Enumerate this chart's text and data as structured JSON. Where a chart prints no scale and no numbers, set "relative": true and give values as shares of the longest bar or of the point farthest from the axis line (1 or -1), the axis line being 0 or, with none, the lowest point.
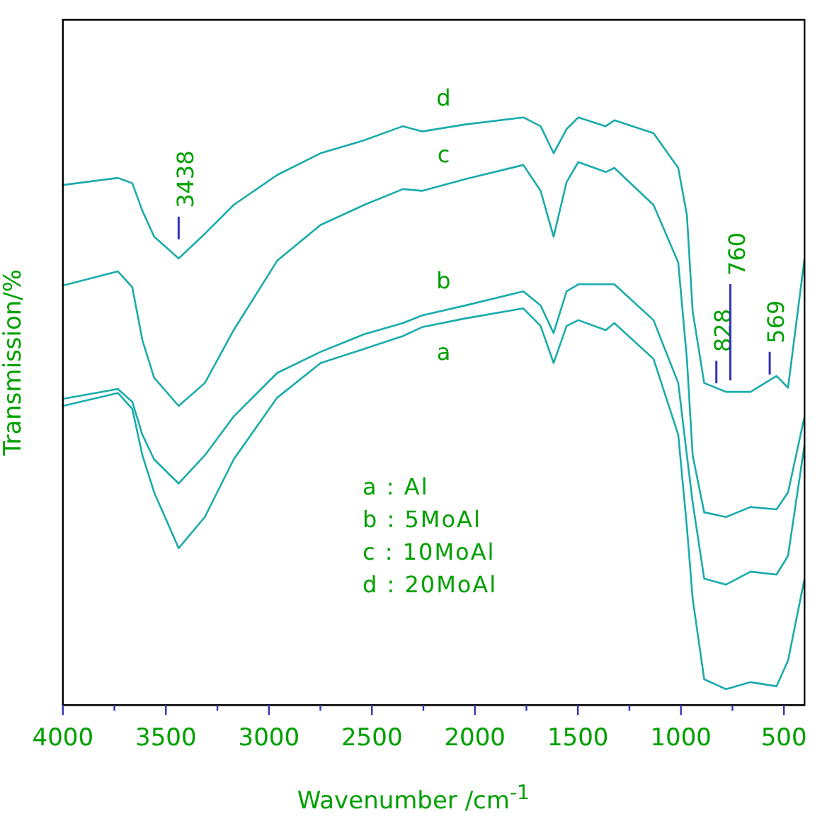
{
  "chart_data": {
    "type": "line",
    "xlabel": "Wavenumber /cm$^{-1}$",
    "ylabel": "Transmission/%",
    "relative": true,
    "grid": false,
    "legend": false,
    "marker": "none",
    "line_style": "solid",
    "xlim": [
      4000,
      400
    ],
    "xticks": [
      4000,
      {
        "value": 3750,
        "label": null
      },
      3500,
      {
        "value": 3250,
        "label": null
      },
      3000,
      {
        "value": 2750,
        "label": null
      },
      2500,
      {
        "value": 2250,
        "label": null
      },
      2000,
      {
        "value": 1750,
        "label": null
      },
      1500,
      {
        "value": 1250,
        "label": null
      },
      1000,
      {
        "value": 750,
        "label": null
      },
      500
    ],
    "x": [
      4000,
      3733,
      3663,
      3614,
      3557,
      3438,
      3311,
      3171,
      2960,
      2749,
      2538,
      2349,
      2257,
      2046,
      1765,
      1681,
      1618,
      1555,
      1498,
      1365,
      1323,
      1133,
      1013,
      971,
      943,
      887,
      781,
      662,
      536,
      480,
      400
    ],
    "series": [
      {
        "name": "a",
        "color": "#1aabab",
        "values": [
          0.509,
          0.531,
          0.504,
          0.425,
          0.362,
          0.267,
          0.32,
          0.418,
          0.523,
          0.582,
          0.606,
          0.628,
          0.643,
          0.658,
          0.675,
          0.645,
          0.582,
          0.645,
          0.655,
          0.638,
          0.65,
          0.589,
          0.46,
          0.303,
          0.181,
          0.044,
          0.027,
          0.039,
          0.032,
          0.076,
          0.215
        ]
      },
      {
        "name": "b",
        "color": "#1aabab",
        "values": [
          0.521,
          0.538,
          0.516,
          0.46,
          0.418,
          0.377,
          0.425,
          0.491,
          0.565,
          0.601,
          0.631,
          0.65,
          0.663,
          0.68,
          0.704,
          0.68,
          0.633,
          0.704,
          0.716,
          0.716,
          0.716,
          0.655,
          0.548,
          0.425,
          0.345,
          0.215,
          0.205,
          0.227,
          0.222,
          0.254,
          0.443
        ]
      },
      {
        "name": "c",
        "color": "#1aabab",
        "values": [
          0.714,
          0.738,
          0.711,
          0.621,
          0.557,
          0.509,
          0.548,
          0.638,
          0.756,
          0.817,
          0.851,
          0.878,
          0.875,
          0.895,
          0.919,
          0.875,
          0.797,
          0.89,
          0.924,
          0.907,
          0.914,
          0.851,
          0.753,
          0.589,
          0.425,
          0.328,
          0.32,
          0.337,
          0.333,
          0.362,
          0.491
        ]
      },
      {
        "name": "d",
        "color": "#1aabab",
        "values": [
          0.885,
          0.897,
          0.888,
          0.841,
          0.797,
          0.76,
          0.802,
          0.851,
          0.902,
          0.939,
          0.961,
          0.985,
          0.976,
          0.988,
          1.0,
          0.985,
          0.939,
          0.98,
          1.0,
          0.985,
          0.995,
          0.973,
          0.914,
          0.834,
          0.67,
          0.548,
          0.533,
          0.533,
          0.56,
          0.54,
          0.76
        ]
      }
    ],
    "annotations": [
      {
        "text": "3438",
        "x": 3438,
        "y": 0.778
      },
      {
        "text": "828",
        "x": 828,
        "y": 0.533
      },
      {
        "text": "760",
        "x": 760,
        "y": 0.538
      },
      {
        "text": "569",
        "x": 569,
        "y": 0.548
      },
      "a : Al",
      "b : 5MoAl",
      "c : 10MoAl",
      "d : 20MoAl"
    ]
  }
}
